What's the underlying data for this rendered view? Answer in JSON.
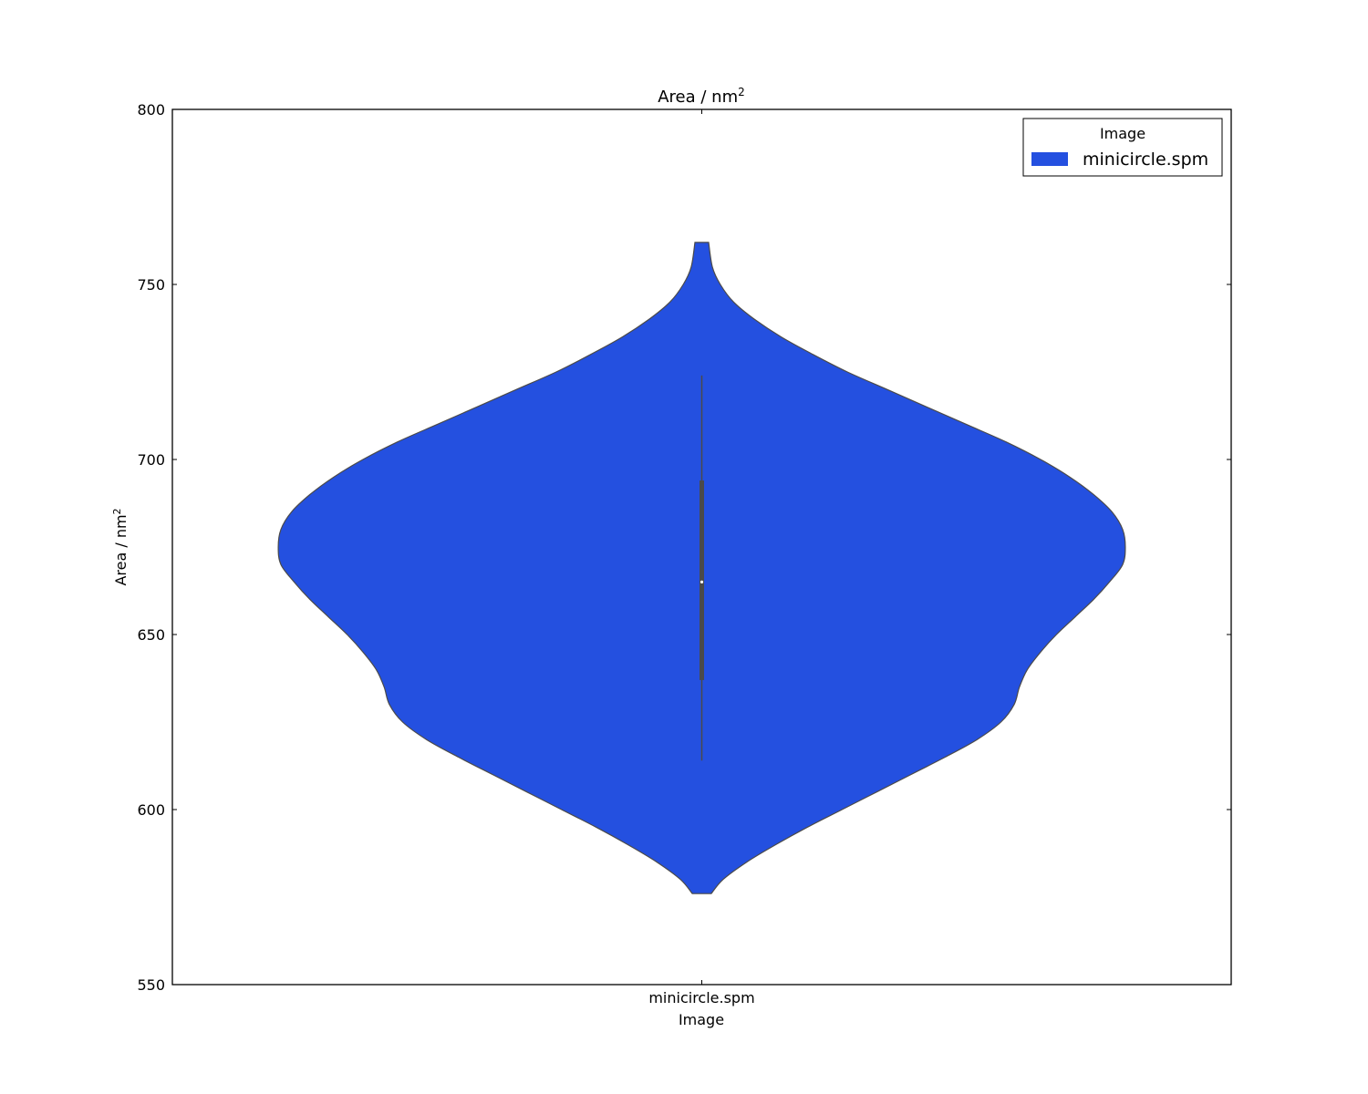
{
  "chart_data": {
    "type": "violin",
    "title": "Area / nm",
    "title_superscript": "2",
    "xlabel": "Image",
    "ylabel": "Area / nm",
    "ylabel_superscript": "2",
    "ylim": [
      550,
      800
    ],
    "yticks": [
      550,
      600,
      650,
      700,
      750,
      800
    ],
    "ytick_labels": [
      "550",
      "600",
      "650",
      "700",
      "750",
      "800"
    ],
    "categories": [
      "minicircle.spm"
    ],
    "legend": {
      "title": "Image",
      "position": "top-right",
      "entries": [
        "minicircle.spm"
      ]
    },
    "colors": {
      "violin": "#2450e0",
      "violin_edge": "#4a4a4a",
      "box": "#4a4a4a"
    },
    "grid": false,
    "series": [
      {
        "category": "minicircle.spm",
        "density": [
          [
            576,
            0.036
          ],
          [
            580,
            0.08
          ],
          [
            585,
            0.17
          ],
          [
            590,
            0.28
          ],
          [
            595,
            0.4
          ],
          [
            600,
            0.53
          ],
          [
            605,
            0.66
          ],
          [
            610,
            0.79
          ],
          [
            615,
            0.92
          ],
          [
            620,
            1.04
          ],
          [
            625,
            1.13
          ],
          [
            630,
            1.18
          ],
          [
            635,
            1.2
          ],
          [
            640,
            1.23
          ],
          [
            645,
            1.28
          ],
          [
            650,
            1.34
          ],
          [
            655,
            1.41
          ],
          [
            660,
            1.48
          ],
          [
            665,
            1.54
          ],
          [
            670,
            1.59
          ],
          [
            675,
            1.6
          ],
          [
            680,
            1.59
          ],
          [
            685,
            1.55
          ],
          [
            690,
            1.48
          ],
          [
            695,
            1.39
          ],
          [
            700,
            1.28
          ],
          [
            705,
            1.15
          ],
          [
            710,
            1.0
          ],
          [
            715,
            0.85
          ],
          [
            720,
            0.7
          ],
          [
            725,
            0.55
          ],
          [
            730,
            0.42
          ],
          [
            735,
            0.3
          ],
          [
            740,
            0.2
          ],
          [
            745,
            0.12
          ],
          [
            750,
            0.07
          ],
          [
            755,
            0.04
          ],
          [
            762,
            0.026
          ]
        ],
        "whisker_low": 614,
        "q1": 637,
        "median": 665,
        "q3": 694,
        "whisker_high": 724
      }
    ]
  }
}
